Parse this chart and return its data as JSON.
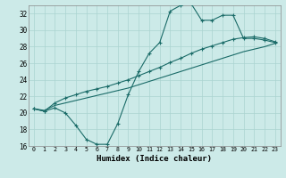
{
  "xlabel": "Humidex (Indice chaleur)",
  "bg_color": "#cceae8",
  "grid_color": "#aad4d0",
  "line_color": "#1a6b68",
  "xlim": [
    -0.5,
    23.5
  ],
  "ylim": [
    16,
    33
  ],
  "yticks": [
    16,
    18,
    20,
    22,
    24,
    26,
    28,
    30,
    32
  ],
  "xticks": [
    0,
    1,
    2,
    3,
    4,
    5,
    6,
    7,
    8,
    9,
    10,
    11,
    12,
    13,
    14,
    15,
    16,
    17,
    18,
    19,
    20,
    21,
    22,
    23
  ],
  "line1_x": [
    0,
    1,
    2,
    3,
    4,
    5,
    6,
    7,
    8,
    9,
    10,
    11,
    12,
    13,
    14,
    15,
    16,
    17,
    18,
    19,
    20,
    21,
    22,
    23
  ],
  "line1_y": [
    20.5,
    20.2,
    20.6,
    20.0,
    18.5,
    16.8,
    16.2,
    16.2,
    18.7,
    22.2,
    25.0,
    27.2,
    28.5,
    32.3,
    33.0,
    33.2,
    31.2,
    31.2,
    31.8,
    31.8,
    29.0,
    29.0,
    28.8,
    28.5
  ],
  "line2_x": [
    0,
    1,
    2,
    3,
    4,
    5,
    6,
    7,
    8,
    9,
    10,
    11,
    12,
    13,
    14,
    15,
    16,
    17,
    18,
    19,
    20,
    21,
    22,
    23
  ],
  "line2_y": [
    20.5,
    20.2,
    21.2,
    21.8,
    22.2,
    22.6,
    22.9,
    23.2,
    23.6,
    24.0,
    24.5,
    25.0,
    25.5,
    26.1,
    26.6,
    27.2,
    27.7,
    28.1,
    28.5,
    28.9,
    29.1,
    29.2,
    29.0,
    28.6
  ],
  "line3_x": [
    0,
    1,
    2,
    3,
    4,
    5,
    6,
    7,
    8,
    9,
    10,
    11,
    12,
    13,
    14,
    15,
    16,
    17,
    18,
    19,
    20,
    21,
    22,
    23
  ],
  "line3_y": [
    20.5,
    20.3,
    20.9,
    21.2,
    21.5,
    21.8,
    22.1,
    22.4,
    22.7,
    23.0,
    23.4,
    23.8,
    24.2,
    24.6,
    25.0,
    25.4,
    25.8,
    26.2,
    26.6,
    27.0,
    27.4,
    27.7,
    28.0,
    28.4
  ]
}
